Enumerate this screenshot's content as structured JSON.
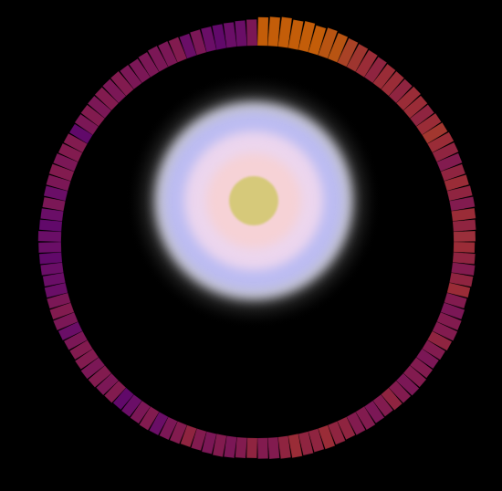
{
  "chart_data": {
    "type": "radial_bar",
    "values": [
      78,
      80,
      82,
      79,
      81,
      77,
      80,
      76,
      74,
      72,
      70,
      68,
      66,
      65,
      64,
      66,
      63,
      62,
      64,
      65,
      67,
      66,
      64,
      62,
      63,
      65,
      66,
      64,
      62,
      60,
      58,
      60,
      62,
      61,
      59,
      57,
      60,
      62,
      63,
      61,
      58,
      56,
      57,
      59,
      60,
      58,
      57,
      55,
      56,
      58,
      57,
      56,
      58,
      60,
      59,
      61,
      62,
      60,
      58,
      57,
      55,
      56,
      58,
      59,
      57,
      55,
      54,
      56,
      57,
      58,
      59,
      57,
      56,
      55,
      57,
      58,
      60,
      61,
      59,
      57,
      58,
      60,
      62,
      61,
      60,
      59,
      58,
      60,
      61,
      62,
      63,
      61,
      60,
      59,
      61,
      62,
      63,
      62,
      60,
      59,
      58,
      60,
      61,
      62,
      63,
      64,
      65,
      63,
      62,
      64,
      66,
      65,
      64,
      63,
      65,
      66,
      67,
      68,
      70,
      72
    ],
    "colors": [
      "#d4650a",
      "#d4650a",
      "#d4650a",
      "#d4650a",
      "#d4650a",
      "#d4650a",
      "#c85c14",
      "#c85c14",
      "#b8482a",
      "#ac3a34",
      "#a8303c",
      "#9c2846",
      "#a8303c",
      "#a8303c",
      "#9c2846",
      "#a8303c",
      "#a8303c",
      "#9c2846",
      "#a8303c",
      "#b03c34",
      "#a8303c",
      "#9c2846",
      "#8e1e56",
      "#9c2846",
      "#a8303c",
      "#9c2846",
      "#8e1e56",
      "#a8303c",
      "#9c2846",
      "#a83440",
      "#a8303c",
      "#9c2846",
      "#8e1e56",
      "#9c2846",
      "#a8303c",
      "#8e1e56",
      "#861a5e",
      "#8e1e56",
      "#8e1e56",
      "#9c2846",
      "#8e1e56",
      "#861a5e",
      "#8e1e56",
      "#8e1e56",
      "#861a5e",
      "#8e1e56",
      "#9c2846",
      "#8e1e56",
      "#861a5e",
      "#8e1e56",
      "#8e1e56",
      "#9c2846",
      "#9c2846",
      "#a8303c",
      "#9c2846",
      "#9c2846",
      "#a8303c",
      "#9c2846",
      "#8e1e56",
      "#8e1e56",
      "#9c2846",
      "#8e1e56",
      "#861a5e",
      "#8e1e56",
      "#861a5e",
      "#8e1e56",
      "#9c2846",
      "#8e1e56",
      "#861a5e",
      "#741070",
      "#8e1e56",
      "#861a5e",
      "#741070",
      "#6a0a74",
      "#8e1e56",
      "#861a5e",
      "#8e1e56",
      "#861a5e",
      "#8e1e56",
      "#8e1e56",
      "#861a5e",
      "#741070",
      "#861a5e",
      "#8e1e56",
      "#861a5e",
      "#741070",
      "#741070",
      "#741070",
      "#6a0a74",
      "#741070",
      "#741070",
      "#6a0a74",
      "#741070",
      "#861a5e",
      "#741070",
      "#861a5e",
      "#8e1e56",
      "#861a5e",
      "#8e1e56",
      "#8e1e56",
      "#6a0a74",
      "#861a5e",
      "#8e1e56",
      "#861a5e",
      "#8e1e56",
      "#861a5e",
      "#8e1e56",
      "#861a5e",
      "#861a5e",
      "#861a5e",
      "#861a5e",
      "#861a5e",
      "#8e1e56",
      "#741070",
      "#861a5e",
      "#741070",
      "#6a0a74",
      "#741070",
      "#741070",
      "#861a5e"
    ],
    "ylim": [
      0,
      100
    ],
    "tick_labels": false
  }
}
